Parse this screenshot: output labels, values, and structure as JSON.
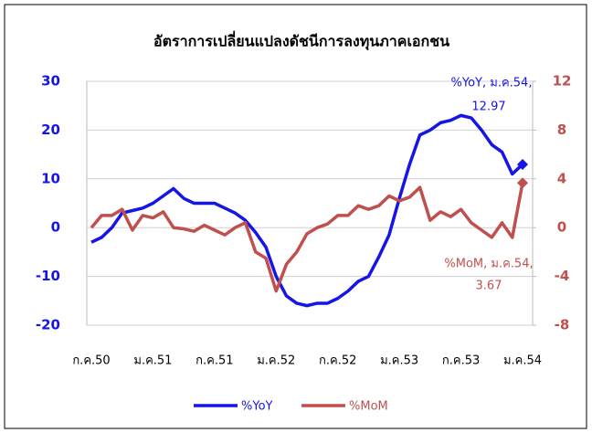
{
  "chart_data": {
    "type": "line",
    "title": "อัตราการเปลี่ยนแปลงดัชนีการลงทุนภาคเอกชน",
    "categories": [
      "ก.ค.50",
      null,
      null,
      null,
      null,
      null,
      "ม.ค.51",
      null,
      null,
      null,
      null,
      null,
      "ก.ค.51",
      null,
      null,
      null,
      null,
      null,
      "ม.ค.52",
      null,
      null,
      null,
      null,
      null,
      "ก.ค.52",
      null,
      null,
      null,
      null,
      null,
      "ม.ค.53",
      null,
      null,
      null,
      null,
      null,
      "ก.ค.53",
      null,
      null,
      null,
      null,
      null,
      "ม.ค.54"
    ],
    "series": [
      {
        "name": "%YoY",
        "color": "#1515e6",
        "axis": "y",
        "values": [
          -3,
          -2,
          0,
          3,
          3.5,
          4,
          5,
          6.5,
          8,
          6,
          5,
          5,
          5,
          4,
          3,
          1.5,
          -1,
          -4,
          -10,
          -14,
          -15.5,
          -16,
          -15.5,
          -15.5,
          -14.5,
          -13,
          -11,
          -10,
          -6,
          -1.5,
          6,
          13,
          19,
          20,
          21.5,
          22,
          23,
          22.5,
          20,
          17,
          15.5,
          11,
          12.97
        ]
      },
      {
        "name": "%MoM",
        "color": "#c0504d",
        "axis": "y2",
        "values": [
          0,
          1,
          1,
          1.5,
          -0.2,
          1,
          0.8,
          1.3,
          0,
          -0.1,
          -0.3,
          0.2,
          -0.2,
          -0.6,
          0,
          0.4,
          -2,
          -2.5,
          -5.2,
          -3,
          -2,
          -0.5,
          0,
          0.3,
          1,
          1,
          1.8,
          1.5,
          1.8,
          2.6,
          2.2,
          2.5,
          3.3,
          0.6,
          1.3,
          0.9,
          1.5,
          0.4,
          -0.2,
          -0.8,
          0.4,
          -0.8,
          3.67
        ]
      }
    ],
    "annotations": [
      "%YoY, ม.ค.54,",
      "%MoM, ม.ค.54,"
    ],
    "ylim": [
      -20,
      30
    ],
    "yticks": [
      -20,
      -10,
      0,
      10,
      20,
      30
    ],
    "y2lim": [
      -8,
      12
    ],
    "y2ticks": [
      -8,
      -4,
      0,
      4,
      8,
      12
    ],
    "grid": true,
    "legend": "bottom"
  }
}
